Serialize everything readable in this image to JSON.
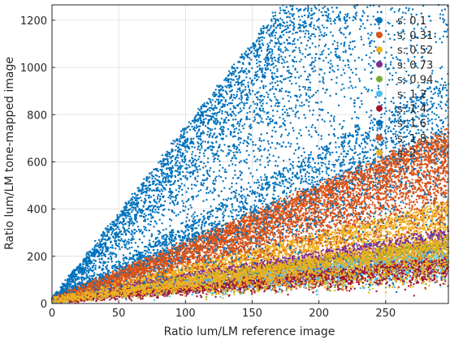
{
  "chart_data": {
    "type": "scatter",
    "title": "",
    "xlabel": "Ratio lum/LM reference image",
    "ylabel": "Ratio lum/LM tone-mapped image",
    "xlim": [
      0,
      297
    ],
    "ylim": [
      0,
      1265
    ],
    "xticks": [
      "0",
      "50",
      "100",
      "150",
      "200",
      "250"
    ],
    "yticks": [
      "0",
      "200",
      "400",
      "600",
      "800",
      "1000",
      "1200"
    ],
    "xtick_values": [
      0,
      50,
      100,
      150,
      200,
      250
    ],
    "ytick_values": [
      0,
      200,
      400,
      600,
      800,
      1000,
      1200
    ],
    "grid": true,
    "legend_position": "top-right",
    "series": [
      {
        "name": "s: 0.1",
        "color": "#0072BD",
        "slope_hi": 7.3,
        "slope_lo": 1.0,
        "points": 5200
      },
      {
        "name": "s: 0.31",
        "color": "#D95319",
        "slope_hi": 2.45,
        "slope_lo": 0.5,
        "points": 4200
      },
      {
        "name": "s: 0.52",
        "color": "#EDB120",
        "slope_hi": 1.4,
        "slope_lo": 0.3,
        "points": 2600
      },
      {
        "name": "s: 0.73",
        "color": "#7E2F8E",
        "slope_hi": 1.0,
        "slope_lo": 0.2,
        "points": 2200
      },
      {
        "name": "s: 0.94",
        "color": "#77AC30",
        "slope_hi": 0.85,
        "slope_lo": 0.15,
        "points": 2000
      },
      {
        "name": "s: 1.2",
        "color": "#4DBEEE",
        "slope_hi": 0.7,
        "slope_lo": 0.12,
        "points": 1800
      },
      {
        "name": "s: 1.4",
        "color": "#A2142F",
        "slope_hi": 0.6,
        "slope_lo": 0.1,
        "points": 1800
      },
      {
        "name": "s: 1.6",
        "color": "#0072BD",
        "slope_hi": 3.2,
        "slope_lo": 0.05,
        "points": 2400
      },
      {
        "name": "s: 1.8",
        "color": "#D95319",
        "slope_hi": 2.35,
        "slope_lo": 0.05,
        "points": 1800
      },
      {
        "name": "s: 2",
        "color": "#EDB120",
        "slope_hi": 0.9,
        "slope_lo": 0.05,
        "points": 2600
      }
    ]
  }
}
